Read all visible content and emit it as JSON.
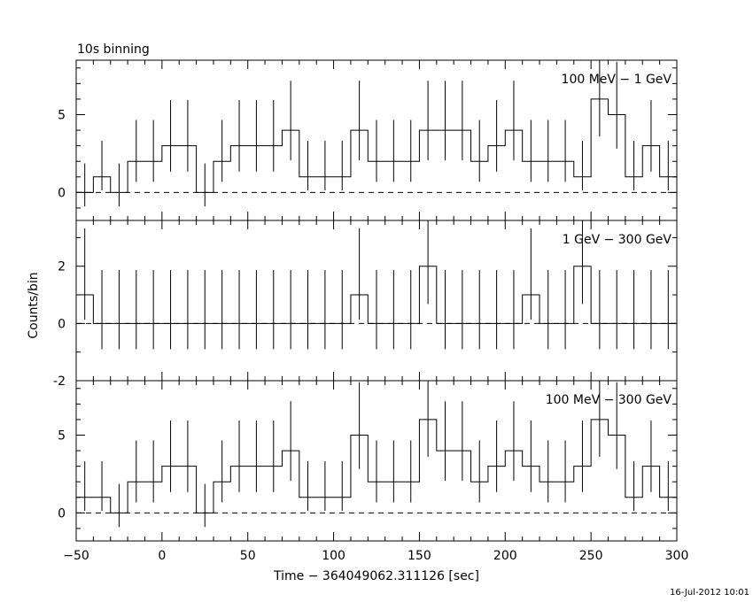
{
  "chart_data": {
    "type": "step",
    "title": "10s binning",
    "xlabel": "Time − 364049062.311126 [sec]",
    "ylabel": "Counts/bin",
    "timestamp": "16-Jul-2012 10:01",
    "xlim": [
      -50,
      300
    ],
    "xticks": [
      -50,
      0,
      50,
      100,
      150,
      200,
      250,
      300
    ],
    "x": [
      -45,
      -35,
      -25,
      -15,
      -5,
      5,
      15,
      25,
      35,
      45,
      55,
      65,
      75,
      85,
      95,
      105,
      115,
      125,
      135,
      145,
      155,
      165,
      175,
      185,
      195,
      205,
      215,
      225,
      235,
      245,
      255,
      265,
      275,
      285,
      295
    ],
    "bin_width": 10,
    "panels": [
      {
        "name": "100 MeV − 1 GeV",
        "ylim": [
          -1.8,
          8.5
        ],
        "yticks": [
          0,
          5
        ],
        "values": [
          0,
          1,
          0,
          2,
          2,
          3,
          3,
          0,
          2,
          3,
          3,
          3,
          4,
          1,
          1,
          1,
          4,
          2,
          2,
          2,
          4,
          4,
          4,
          2,
          3,
          4,
          2,
          2,
          2,
          1,
          6,
          5,
          1,
          3,
          1
        ]
      },
      {
        "name": "1 GeV − 300 GeV",
        "ylim": [
          -2,
          3.6
        ],
        "yticks": [
          -2,
          0,
          2
        ],
        "values": [
          1,
          0,
          0,
          0,
          0,
          0,
          0,
          0,
          0,
          0,
          0,
          0,
          0,
          0,
          0,
          0,
          1,
          0,
          0,
          0,
          2,
          0,
          0,
          0,
          0,
          0,
          1,
          0,
          0,
          2,
          0,
          0,
          0,
          0,
          0
        ]
      },
      {
        "name": "100 MeV − 300 GeV",
        "ylim": [
          -1.8,
          8.5
        ],
        "yticks": [
          0,
          5
        ],
        "values": [
          1,
          1,
          0,
          2,
          2,
          3,
          3,
          0,
          2,
          3,
          3,
          3,
          4,
          1,
          1,
          1,
          5,
          2,
          2,
          2,
          6,
          4,
          4,
          2,
          3,
          4,
          3,
          2,
          2,
          3,
          6,
          5,
          1,
          3,
          1
        ]
      }
    ]
  }
}
